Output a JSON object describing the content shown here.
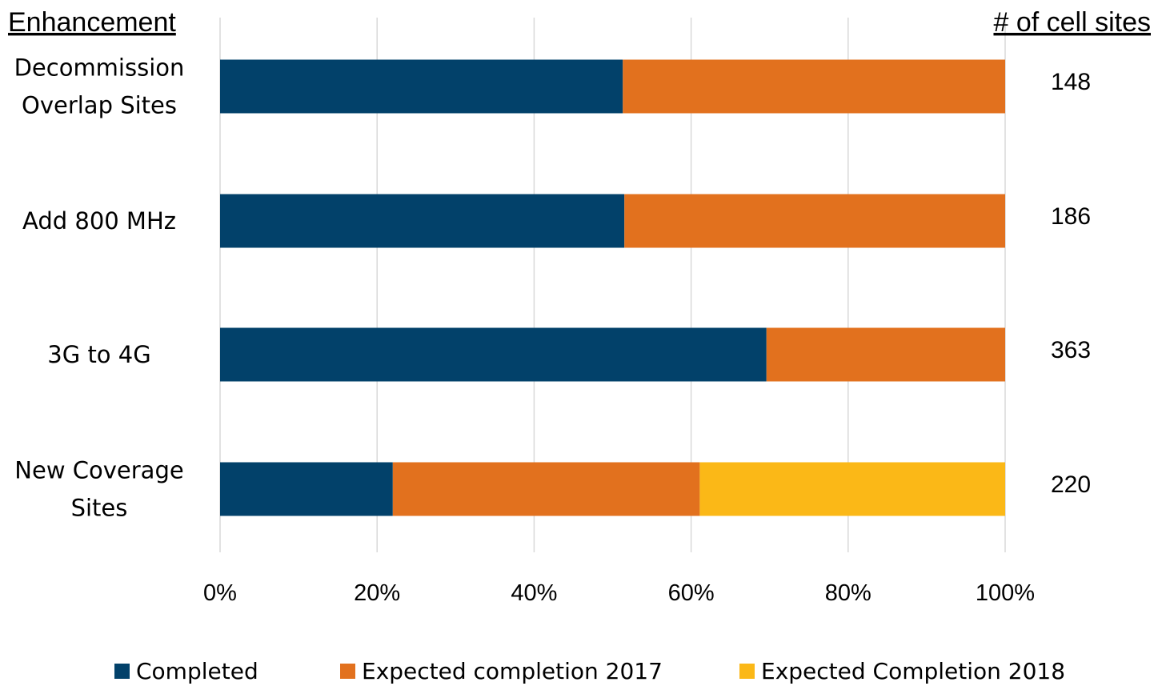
{
  "chart_data": {
    "type": "bar",
    "orientation": "horizontal",
    "stacked": "percent",
    "y_header": "Enhancement",
    "right_header": "# of cell sites",
    "categories": [
      [
        "Decommission",
        "Overlap Sites"
      ],
      [
        "Add 800 MHz"
      ],
      [
        "3G to 4G"
      ],
      [
        "New Coverage",
        "Sites"
      ]
    ],
    "cell_sites": [
      "148",
      "186",
      "363",
      "220"
    ],
    "series": [
      {
        "name": "Completed",
        "values": [
          51.3,
          51.5,
          69.6,
          22.0
        ],
        "color": "#02416A"
      },
      {
        "name": "Expected completion 2017",
        "values": [
          48.7,
          48.5,
          30.4,
          39.1
        ],
        "color": "#E2711E"
      },
      {
        "name": "Expected Completion 2018",
        "values": [
          0,
          0,
          0,
          38.9
        ],
        "color": "#FBB817"
      }
    ],
    "xlim": [
      0,
      100
    ],
    "x_ticks": [
      "0%",
      "20%",
      "40%",
      "60%",
      "80%",
      "100%"
    ],
    "x_tick_values": [
      0,
      20,
      40,
      60,
      80,
      100
    ],
    "grid": "vertical",
    "grid_color": "#D9D9D9",
    "legend_position": "bottom"
  }
}
